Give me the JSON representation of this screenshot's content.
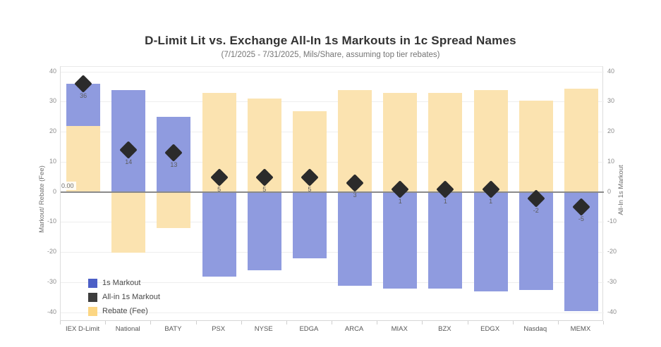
{
  "title": "D-Limit Lit vs. Exchange All-In 1s Markouts in 1c Spread Names",
  "subtitle": "(7/1/2025 - 7/31/2025, Mils/Share, assuming top tier rebates)",
  "zero_reference_label": "0.00",
  "axes": {
    "left_title": "Markout/ Rebate (Fee)",
    "right_title": "All-In 1s Markout",
    "ticks": [
      40,
      30,
      20,
      10,
      0,
      -10,
      -20,
      -30,
      -40
    ],
    "ylim": [
      -40,
      40
    ]
  },
  "legend": {
    "items": [
      {
        "label": "1s Markout",
        "color": "#4c5fc6"
      },
      {
        "label": "All-in 1s Markout",
        "color": "#3d3d3d"
      },
      {
        "label": "Rebate (Fee)",
        "color": "#fcd683"
      }
    ]
  },
  "colors": {
    "markout_bar": "#8f9bdf",
    "rebate_bar": "#fbe3b0",
    "diamond": "#2b2b2b",
    "zero_line": "#8a8a8a",
    "gridline": "#eeeeee"
  },
  "chart_data": {
    "type": "bar",
    "title": "D-Limit Lit vs. Exchange All-In 1s Markouts in 1c Spread Names",
    "subtitle": "(7/1/2025 - 7/31/2025, Mils/Share, assuming top tier rebates)",
    "categories": [
      "IEX D-Limit",
      "National",
      "BATY",
      "PSX",
      "NYSE",
      "EDGA",
      "ARCA",
      "MIAX",
      "BZX",
      "EDGX",
      "Nasdaq",
      "MEMX"
    ],
    "series": [
      {
        "name": "1s Markout",
        "mark": "bar",
        "values": [
          14,
          34,
          25,
          -28,
          -26,
          -22,
          -31,
          -32,
          -32,
          -33,
          -32.5,
          -39.5
        ]
      },
      {
        "name": "Rebate (Fee)",
        "mark": "bar",
        "values": [
          22,
          -20,
          -12,
          33,
          31,
          27,
          34,
          33,
          33,
          34,
          30.5,
          34.5
        ]
      },
      {
        "name": "All-in 1s Markout",
        "mark": "diamond",
        "values": [
          36,
          14,
          13,
          5,
          5,
          5,
          3,
          1,
          1,
          1,
          -2,
          -5
        ],
        "point_labels": [
          "36",
          "14",
          "13",
          "5",
          "5",
          "5",
          "3",
          "1",
          "1",
          "1",
          "-2",
          "-5"
        ]
      }
    ],
    "stacking": "positive and negative segments stack from zero; diamond = 1s Markout + Rebate (Fee)",
    "ylabel_left": "Markout/ Rebate (Fee)",
    "ylabel_right": "All-In 1s Markout",
    "ylim": [
      -40,
      40
    ],
    "grid": true,
    "zero_reference_line": 0,
    "legend_position": "inside bottom-left"
  }
}
